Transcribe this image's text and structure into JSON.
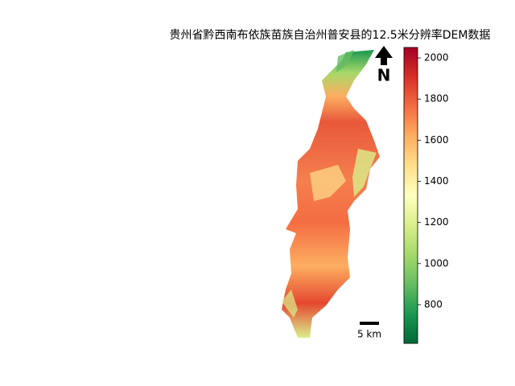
{
  "chart_data": {
    "type": "map",
    "title": "贵州省黔西南布依族苗族自治州普安县的12.5米分辨率DEM数据",
    "ylim": [
      612,
      2051
    ],
    "yticks": [
      800,
      1000,
      1200,
      1400,
      1600,
      1800,
      2000
    ],
    "colormap": [
      "#006837",
      "#1a9850",
      "#66bd63",
      "#a6d96a",
      "#d9ef8b",
      "#ffffbf",
      "#fee08b",
      "#fdae61",
      "#f46d43",
      "#d73027",
      "#a50026"
    ],
    "north_label": "N",
    "scale_bar_label": "5 km"
  }
}
